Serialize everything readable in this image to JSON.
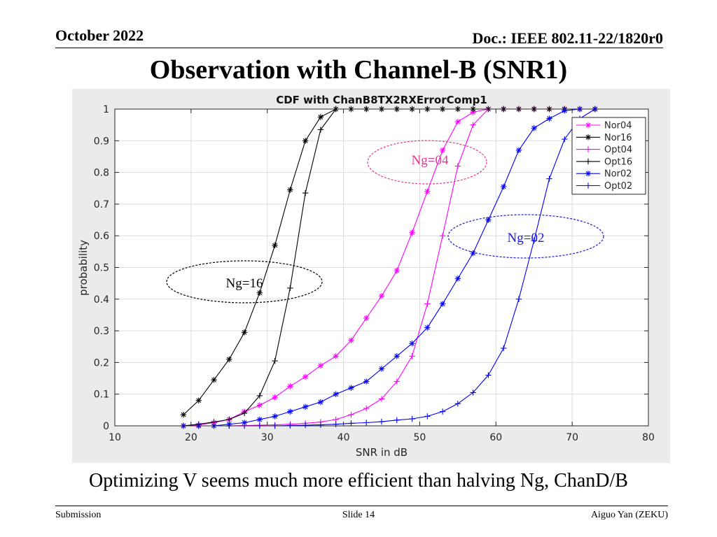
{
  "header": {
    "date": "October 2022",
    "doc": "Doc.: IEEE 802.11-22/1820r0"
  },
  "slide_title": "Observation with Channel-B (SNR1)",
  "caption": "Optimizing V seems much more efficient than halving Ng, ChanD/B",
  "footer": {
    "left": "Submission",
    "center": "Slide 14",
    "right": "Aiguo Yan (ZEKU)"
  },
  "annotations": [
    {
      "text": "Ng=04",
      "color": "#e03c8c"
    },
    {
      "text": "Ng=02",
      "color": "#1a1adc"
    },
    {
      "text": "Ng=16",
      "color": "#000000"
    }
  ],
  "chart_data": {
    "type": "line",
    "title": "CDF with ChanB8TX2RXErrorComp1",
    "xlabel": "SNR in dB",
    "ylabel": "probability",
    "xlim": [
      10,
      80
    ],
    "ylim": [
      0,
      1
    ],
    "xticks": [
      10,
      20,
      30,
      40,
      50,
      60,
      70,
      80
    ],
    "yticks": [
      0,
      0.1,
      0.2,
      0.3,
      0.4,
      0.5,
      0.6,
      0.7,
      0.8,
      0.9,
      1
    ],
    "grid": true,
    "legend_position": "top-right",
    "series": [
      {
        "name": "Nor04",
        "color": "#ff00ff",
        "marker": "star",
        "x": [
          19,
          21,
          23,
          25,
          27,
          29,
          31,
          33,
          35,
          37,
          39,
          41,
          43,
          45,
          47,
          49,
          51,
          53,
          55,
          57,
          59,
          61,
          63,
          65,
          67,
          69,
          71,
          73
        ],
        "y": [
          0,
          0.003,
          0.01,
          0.02,
          0.045,
          0.065,
          0.09,
          0.125,
          0.155,
          0.19,
          0.22,
          0.27,
          0.34,
          0.41,
          0.49,
          0.61,
          0.74,
          0.87,
          0.96,
          0.99,
          1,
          1,
          1,
          1,
          1,
          1,
          1,
          1
        ]
      },
      {
        "name": "Nor16",
        "color": "#000000",
        "marker": "star",
        "x": [
          19,
          21,
          23,
          25,
          27,
          29,
          31,
          33,
          35,
          37,
          39,
          41,
          43,
          45,
          47,
          49,
          51,
          53,
          55,
          57,
          59,
          61,
          63,
          65,
          67,
          69,
          71,
          73
        ],
        "y": [
          0.035,
          0.08,
          0.145,
          0.21,
          0.295,
          0.42,
          0.57,
          0.745,
          0.9,
          0.975,
          1,
          1,
          1,
          1,
          1,
          1,
          1,
          1,
          1,
          1,
          1,
          1,
          1,
          1,
          1,
          1,
          1,
          1
        ]
      },
      {
        "name": "Opt04",
        "color": "#ff00ff",
        "marker": "plus",
        "x": [
          19,
          21,
          23,
          25,
          27,
          29,
          31,
          33,
          35,
          37,
          39,
          41,
          43,
          45,
          47,
          49,
          51,
          53,
          55,
          57,
          59,
          61,
          63,
          65,
          67,
          69,
          71,
          73
        ],
        "y": [
          0,
          0,
          0,
          0,
          0.001,
          0.002,
          0.003,
          0.005,
          0.008,
          0.012,
          0.02,
          0.035,
          0.055,
          0.085,
          0.14,
          0.22,
          0.385,
          0.6,
          0.82,
          0.95,
          1,
          1,
          1,
          1,
          1,
          1,
          1,
          1
        ]
      },
      {
        "name": "Opt16",
        "color": "#000000",
        "marker": "plus",
        "x": [
          19,
          21,
          23,
          25,
          27,
          29,
          31,
          33,
          35,
          37,
          39,
          41,
          43,
          45,
          47,
          49,
          51,
          53,
          55,
          57,
          59,
          61,
          63,
          65,
          67,
          69,
          71,
          73
        ],
        "y": [
          0,
          0.005,
          0.012,
          0.02,
          0.04,
          0.095,
          0.205,
          0.435,
          0.735,
          0.935,
          1,
          1,
          1,
          1,
          1,
          1,
          1,
          1,
          1,
          1,
          1,
          1,
          1,
          1,
          1,
          1,
          1,
          1
        ]
      },
      {
        "name": "Nor02",
        "color": "#0000ff",
        "marker": "star",
        "x": [
          19,
          21,
          23,
          25,
          27,
          29,
          31,
          33,
          35,
          37,
          39,
          41,
          43,
          45,
          47,
          49,
          51,
          53,
          55,
          57,
          59,
          61,
          63,
          65,
          67,
          69,
          71,
          73
        ],
        "y": [
          0,
          0,
          0,
          0.005,
          0.01,
          0.02,
          0.03,
          0.045,
          0.06,
          0.075,
          0.1,
          0.12,
          0.14,
          0.18,
          0.22,
          0.26,
          0.31,
          0.385,
          0.465,
          0.545,
          0.65,
          0.755,
          0.87,
          0.94,
          0.97,
          0.995,
          1,
          1
        ]
      },
      {
        "name": "Opt02",
        "color": "#0000ff",
        "marker": "plus",
        "x": [
          19,
          21,
          23,
          25,
          27,
          29,
          31,
          33,
          35,
          37,
          39,
          41,
          43,
          45,
          47,
          49,
          51,
          53,
          55,
          57,
          59,
          61,
          63,
          65,
          67,
          69,
          71,
          73
        ],
        "y": [
          0,
          0,
          0,
          0,
          0,
          0,
          0,
          0.001,
          0.002,
          0.003,
          0.005,
          0.008,
          0.01,
          0.013,
          0.018,
          0.022,
          0.03,
          0.045,
          0.07,
          0.105,
          0.16,
          0.245,
          0.4,
          0.585,
          0.78,
          0.905,
          0.97,
          1
        ]
      }
    ]
  }
}
